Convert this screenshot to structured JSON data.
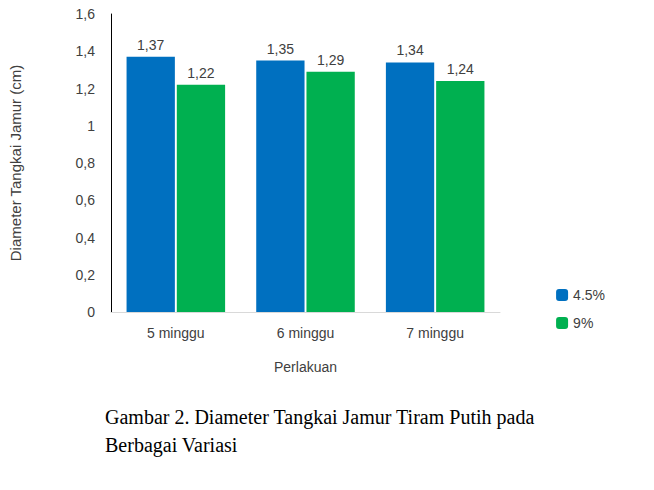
{
  "chart_data": {
    "type": "bar",
    "title": "Gambar 2. Diameter Tangkai Jamur Tiram Putih pada Berbagai Variasi",
    "x_label": "Perlakuan",
    "y_label": "Diameter Tangkai Jamur (cm)",
    "categories": [
      "5 minggu",
      "6 minggu",
      "7 minggu"
    ],
    "series": [
      {
        "name": "4.5%",
        "color": "#0070c0",
        "values": [
          1.37,
          1.35,
          1.34
        ],
        "value_labels": [
          "1,37",
          "1,35",
          "1,34"
        ]
      },
      {
        "name": "9%",
        "color": "#00b050",
        "values": [
          1.22,
          1.29,
          1.24
        ],
        "value_labels": [
          "1,22",
          "1,29",
          "1,24"
        ]
      }
    ],
    "ylim": [
      0,
      1.6
    ],
    "yticks": [
      0,
      {
        "value": 0.2,
        "label": "0,2"
      },
      {
        "value": 0.4,
        "label": "0,4"
      },
      {
        "value": 0.6,
        "label": "0,6"
      },
      {
        "value": 0.8,
        "label": "0,8"
      },
      1,
      {
        "value": 1.2,
        "label": "1,2"
      },
      {
        "value": 1.4,
        "label": "1,4"
      },
      {
        "value": 1.6,
        "label": "1,6"
      }
    ],
    "grid": false,
    "legend": "right",
    "data_labels": true
  }
}
